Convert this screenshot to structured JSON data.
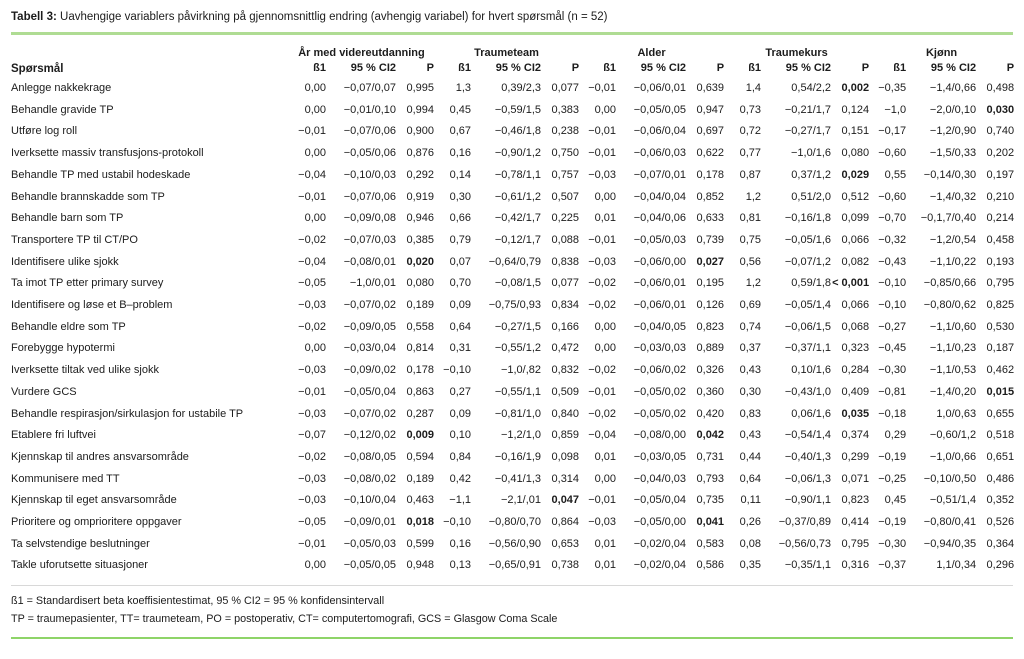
{
  "title": {
    "label": "Tabell 3:",
    "text": "Uavhengige variablers påvirkning på gjennomsnittlig endring (avhengig variabel) for hvert spørsmål (n = 52)"
  },
  "table": {
    "row_header": "Spørsmål",
    "groups": [
      "År med videreutdanning",
      "Traumeteam",
      "Alder",
      "Traumekurs",
      "Kjønn"
    ],
    "subheaders": [
      "ß1",
      "95 % CI2",
      "P"
    ],
    "rows": [
      {
        "q": "Anlegge nakkekrage",
        "v": [
          "0,00",
          "−0,07/0,07",
          "0,995",
          "1,3",
          "0,39/2,3",
          "0,077",
          "−0,01",
          "−0,06/0,01",
          "0,639",
          "1,4",
          "0,54/2,2",
          "0,002",
          "−0,35",
          "−1,4/0,66",
          "0,498"
        ],
        "bold": [
          11
        ]
      },
      {
        "q": "Behandle gravide TP",
        "v": [
          "0,00",
          "−0,01/0,10",
          "0,994",
          "0,45",
          "−0,59/1,5",
          "0,383",
          "0,00",
          "−0,05/0,05",
          "0,947",
          "0,73",
          "−0,21/1,7",
          "0,124",
          "−1,0",
          "−2,0/0,10",
          "0,030"
        ],
        "bold": [
          14
        ]
      },
      {
        "q": "Utføre log roll",
        "v": [
          "−0,01",
          "−0,07/0,06",
          "0,900",
          "0,67",
          "−0,46/1,8",
          "0,238",
          "−0,01",
          "−0,06/0,04",
          "0,697",
          "0,72",
          "−0,27/1,7",
          "0,151",
          "−0,17",
          "−1,2/0,90",
          "0,740"
        ],
        "bold": []
      },
      {
        "q": "Iverksette massiv transfusjons-protokoll",
        "v": [
          "0,00",
          "−0,05/0,06",
          "0,876",
          "0,16",
          "−0,90/1,2",
          "0,750",
          "−0,01",
          "−0,06/0,03",
          "0,622",
          "0,77",
          "−1,0/1,6",
          "0,080",
          "−0,60",
          "−1,5/0,33",
          "0,202"
        ],
        "bold": []
      },
      {
        "q": "Behandle TP med ustabil hodeskade",
        "v": [
          "−0,04",
          "−0,10/0,03",
          "0,292",
          "0,14",
          "−0,78/1,1",
          "0,757",
          "−0,03",
          "−0,07/0,01",
          "0,178",
          "0,87",
          "0,37/1,2",
          "0,029",
          "0,55",
          "−0,14/0,30",
          "0,197"
        ],
        "bold": [
          11
        ]
      },
      {
        "q": "Behandle brannskadde som TP",
        "v": [
          "−0,01",
          "−0,07/0,06",
          "0,919",
          "0,30",
          "−0,61/1,2",
          "0,507",
          "0,00",
          "−0,04/0,04",
          "0,852",
          "1,2",
          "0,51/2,0",
          "0,512",
          "−0,60",
          "−1,4/0,32",
          "0,210"
        ],
        "bold": []
      },
      {
        "q": "Behandle barn som TP",
        "v": [
          "0,00",
          "−0,09/0,08",
          "0,946",
          "0,66",
          "−0,42/1,7",
          "0,225",
          "0,01",
          "−0,04/0,06",
          "0,633",
          "0,81",
          "−0,16/1,8",
          "0,099",
          "−0,70",
          "−0,1,7/0,40",
          "0,214"
        ],
        "bold": []
      },
      {
        "q": "Transportere TP til CT/PO",
        "v": [
          "−0,02",
          "−0,07/0,03",
          "0,385",
          "0,79",
          "−0,12/1,7",
          "0,088",
          "−0,01",
          "−0,05/0,03",
          "0,739",
          "0,75",
          "−0,05/1,6",
          "0,066",
          "−0,32",
          "−1,2/0,54",
          "0,458"
        ],
        "bold": []
      },
      {
        "q": "Identifisere ulike sjokk",
        "v": [
          "−0,04",
          "−0,08/0,01",
          "0,020",
          "0,07",
          "−0,64/0,79",
          "0,838",
          "−0,03",
          "−0,06/0,00",
          "0,027",
          "0,56",
          "−0,07/1,2",
          "0,082",
          "−0,43",
          "−1,1/0,22",
          "0,193"
        ],
        "bold": [
          2,
          8
        ]
      },
      {
        "q": "Ta imot TP etter primary survey",
        "v": [
          "−0,05",
          "−1,0/0,01",
          "0,080",
          "0,70",
          "−0,08/1,5",
          "0,077",
          "−0,02",
          "−0,06/0,01",
          "0,195",
          "1,2",
          "0,59/1,8",
          "< 0,001",
          "−0,10",
          "−0,85/0,66",
          "0,795"
        ],
        "bold": [
          11
        ]
      },
      {
        "q": "Identifisere og løse et B–problem",
        "v": [
          "−0,03",
          "−0,07/0,02",
          "0,189",
          "0,09",
          "−0,75/0,93",
          "0,834",
          "−0,02",
          "−0,06/0,01",
          "0,126",
          "0,69",
          "−0,05/1,4",
          "0,066",
          "−0,10",
          "−0,80/0,62",
          "0,825"
        ],
        "bold": []
      },
      {
        "q": "Behandle eldre som TP",
        "v": [
          "−0,02",
          "−0,09/0,05",
          "0,558",
          "0,64",
          "−0,27/1,5",
          "0,166",
          "0,00",
          "−0,04/0,05",
          "0,823",
          "0,74",
          "−0,06/1,5",
          "0,068",
          "−0,27",
          "−1,1/0,60",
          "0,530"
        ],
        "bold": []
      },
      {
        "q": "Forebygge hypotermi",
        "v": [
          "0,00",
          "−0,03/0,04",
          "0,814",
          "0,31",
          "−0,55/1,2",
          "0,472",
          "0,00",
          "−0,03/0,03",
          "0,889",
          "0,37",
          "−0,37/1,1",
          "0,323",
          "−0,45",
          "−1,1/0,23",
          "0,187"
        ],
        "bold": []
      },
      {
        "q": "Iverksette tiltak ved ulike sjokk",
        "v": [
          "−0,03",
          "−0,09/0,02",
          "0,178",
          "−0,10",
          "−1,0/,82",
          "0,832",
          "−0,02",
          "−0,06/0,02",
          "0,326",
          "0,43",
          "0,10/1,6",
          "0,284",
          "−0,30",
          "−1,1/0,53",
          "0,462"
        ],
        "bold": []
      },
      {
        "q": "Vurdere GCS",
        "v": [
          "−0,01",
          "−0,05/0,04",
          "0,863",
          "0,27",
          "−0,55/1,1",
          "0,509",
          "−0,01",
          "−0,05/0,02",
          "0,360",
          "0,30",
          "−0,43/1,0",
          "0,409",
          "−0,81",
          "−1,4/0,20",
          "0,015"
        ],
        "bold": [
          14
        ]
      },
      {
        "q": "Behandle respirasjon/sirkulasjon for ustabile TP",
        "v": [
          "−0,03",
          "−0,07/0,02",
          "0,287",
          "0,09",
          "−0,81/1,0",
          "0,840",
          "−0,02",
          "−0,05/0,02",
          "0,420",
          "0,83",
          "0,06/1,6",
          "0,035",
          "−0,18",
          "1,0/0,63",
          "0,655"
        ],
        "bold": [
          11
        ]
      },
      {
        "q": "Etablere fri luftvei",
        "v": [
          "−0,07",
          "−0,12/0,02",
          "0,009",
          "0,10",
          "−1,2/1,0",
          "0,859",
          "−0,04",
          "−0,08/0,00",
          "0,042",
          "0,43",
          "−0,54/1,4",
          "0,374",
          "0,29",
          "−0,60/1,2",
          "0,518"
        ],
        "bold": [
          2,
          8
        ]
      },
      {
        "q": "Kjennskap til andres ansvarsområde",
        "v": [
          "−0,02",
          "−0,08/0,05",
          "0,594",
          "0,84",
          "−0,16/1,9",
          "0,098",
          "0,01",
          "−0,03/0,05",
          "0,731",
          "0,44",
          "−0,40/1,3",
          "0,299",
          "−0,19",
          "−1,0/0,66",
          "0,651"
        ],
        "bold": []
      },
      {
        "q": "Kommunisere med TT",
        "v": [
          "−0,03",
          "−0,08/0,02",
          "0,189",
          "0,42",
          "−0,41/1,3",
          "0,314",
          "0,00",
          "−0,04/0,03",
          "0,793",
          "0,64",
          "−0,06/1,3",
          "0,071",
          "−0,25",
          "−0,10/0,50",
          "0,486"
        ],
        "bold": []
      },
      {
        "q": "Kjennskap til eget ansvarsområde",
        "v": [
          "−0,03",
          "−0,10/0,04",
          "0,463",
          "−1,1",
          "−2,1/,01",
          "0,047",
          "−0,01",
          "−0,05/0,04",
          "0,735",
          "0,11",
          "−0,90/1,1",
          "0,823",
          "0,45",
          "−0,51/1,4",
          "0,352"
        ],
        "bold": [
          5
        ]
      },
      {
        "q": "Prioritere og omprioritere oppgaver",
        "v": [
          "−0,05",
          "−0,09/0,01",
          "0,018",
          "−0,10",
          "−0,80/0,70",
          "0,864",
          "−0,03",
          "−0,05/0,00",
          "0,041",
          "0,26",
          "−0,37/0,89",
          "0,414",
          "−0,19",
          "−0,80/0,41",
          "0,526"
        ],
        "bold": [
          2,
          8
        ]
      },
      {
        "q": "Ta selvstendige beslutninger",
        "v": [
          "−0,01",
          "−0,05/0,03",
          "0,599",
          "0,16",
          "−0,56/0,90",
          "0,653",
          "0,01",
          "−0,02/0,04",
          "0,583",
          "0,08",
          "−0,56/0,73",
          "0,795",
          "−0,30",
          "−0,94/0,35",
          "0,364"
        ],
        "bold": []
      },
      {
        "q": "Takle uforutsette situasjoner",
        "v": [
          "0,00",
          "−0,05/0,05",
          "0,948",
          "0,13",
          "−0,65/0,91",
          "0,738",
          "0,01",
          "−0,02/0,04",
          "0,586",
          "0,35",
          "−0,35/1,1",
          "0,316",
          "−0,37",
          "1,1/0,34",
          "0,296"
        ],
        "bold": []
      }
    ]
  },
  "footnotes": [
    "ß1 = Standardisert beta koeffisientestimat, 95 % CI2 = 95 % konfidensintervall",
    "TP = traumepasienter, TT= traumeteam, PO = postoperativ, CT= computertomografi, GCS = Glasgow Coma Scale"
  ],
  "colors": {
    "rule_top_green": "#afdc93",
    "rule_bottom_green": "#8ed468",
    "rule_gray": "#d8d8d8",
    "text": "#1c1c1c"
  }
}
